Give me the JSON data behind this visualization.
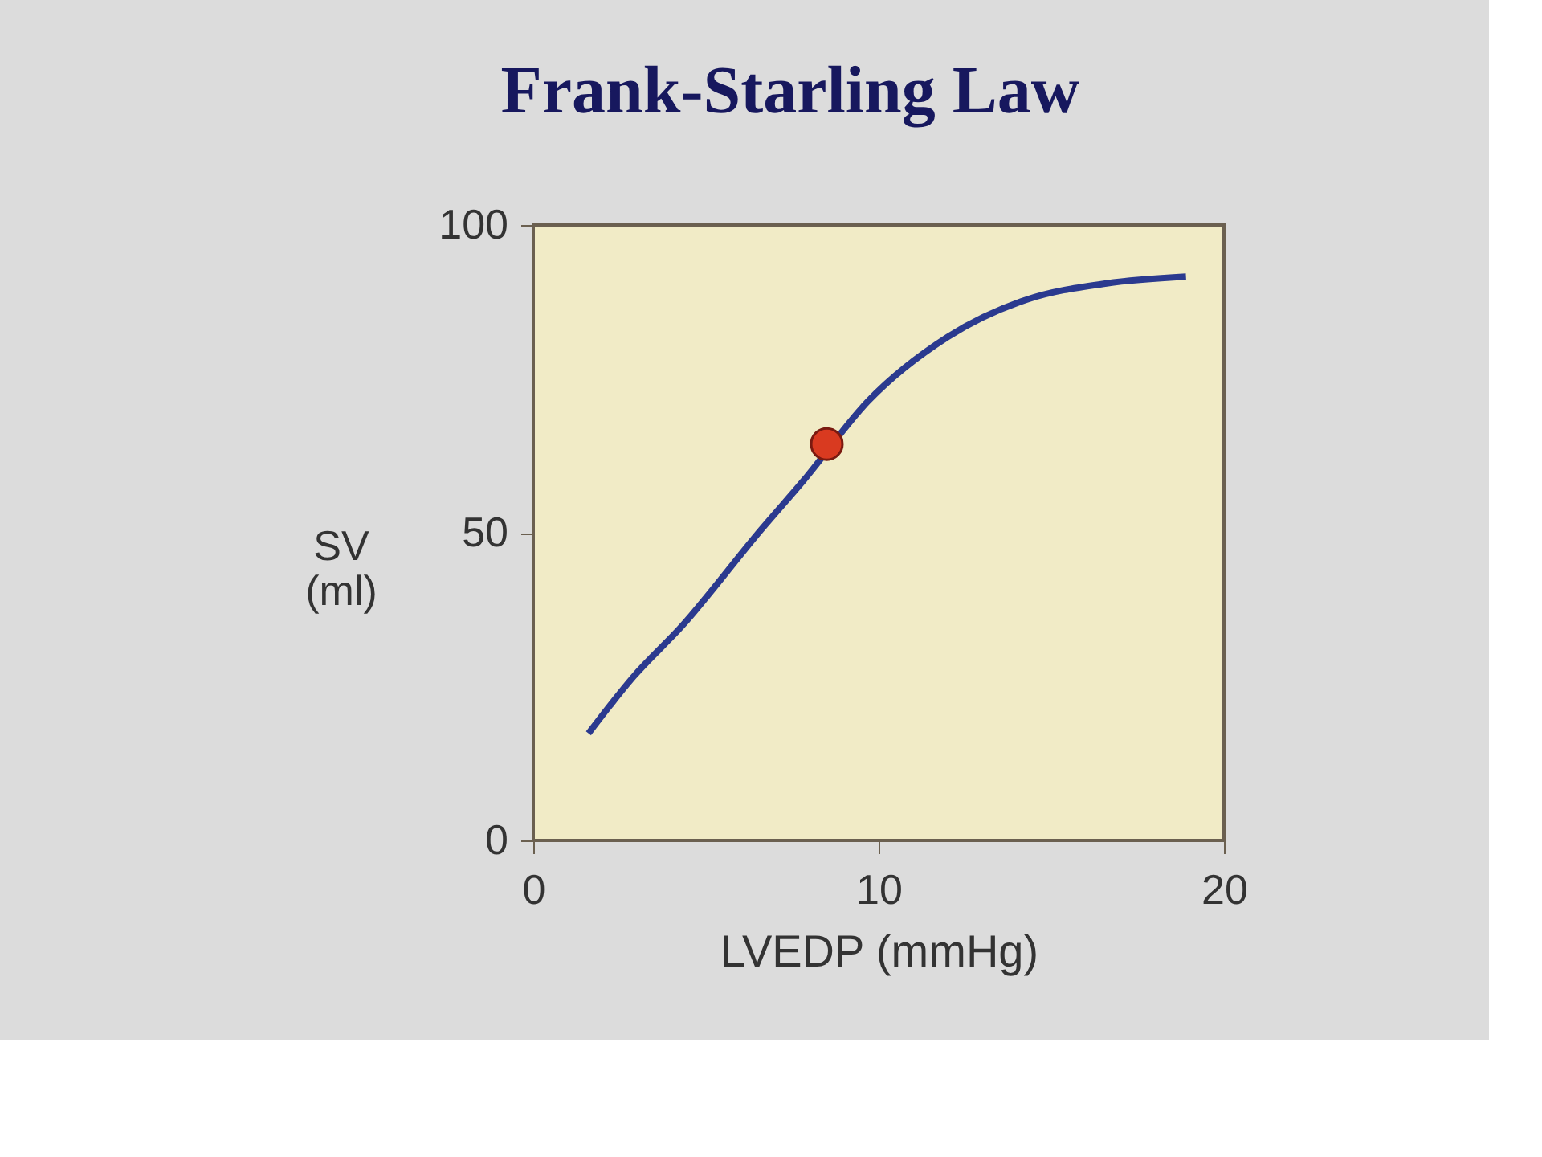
{
  "chart_data": {
    "type": "line",
    "title": "Frank-Starling Law",
    "xlabel": "LVEDP (mmHg)",
    "ylabel": "SV (ml)",
    "xlim": [
      0,
      20
    ],
    "xticks": [
      0,
      10,
      20
    ],
    "ylim": [
      0,
      100
    ],
    "yticks": [
      0,
      50,
      100
    ],
    "grid": false,
    "series": [
      {
        "type": "line",
        "color": "#2b3a8f",
        "marker": "none",
        "line_style": "solid",
        "x": [
          1.6,
          2.9,
          4.3,
          6.6,
          7.8,
          9.7,
          12.0,
          14.3,
          16.6,
          18.9
        ],
        "values": [
          17.4,
          26.6,
          34.8,
          50.5,
          58.3,
          71.4,
          81.8,
          87.9,
          90.5,
          91.6
        ]
      },
      {
        "type": "scatter",
        "color": "#d93a20",
        "marker": "circle",
        "x": [
          8.5
        ],
        "values": [
          64.4
        ]
      }
    ]
  }
}
